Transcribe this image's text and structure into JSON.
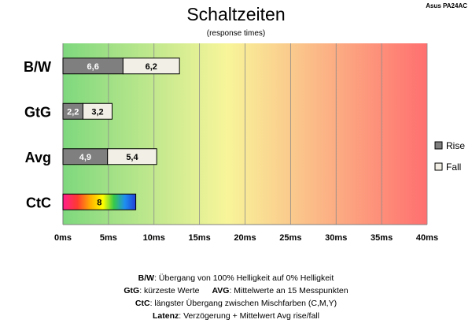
{
  "header": {
    "title": "Schaltzeiten",
    "subtitle": "(response times)",
    "model": "Asus PA24AC"
  },
  "chart_data": {
    "type": "bar",
    "orientation": "horizontal",
    "stacked": true,
    "categories": [
      "B/W",
      "GtG",
      "Avg",
      "CtC"
    ],
    "series": [
      {
        "name": "Rise",
        "color": "#7f7f7f",
        "values": [
          6.6,
          2.2,
          4.9,
          null
        ]
      },
      {
        "name": "Fall",
        "color": "#f2f0e6",
        "values": [
          6.2,
          3.2,
          5.4,
          null
        ]
      }
    ],
    "single_values": [
      null,
      null,
      null,
      8
    ],
    "single_value_labels": [
      null,
      null,
      null,
      "8"
    ],
    "rise_labels": [
      "6,6",
      "2,2",
      "4,9",
      null
    ],
    "fall_labels": [
      "6,2",
      "3,2",
      "5,4",
      null
    ],
    "xlim": [
      0,
      40
    ],
    "x_ticks": [
      0,
      5,
      10,
      15,
      20,
      25,
      30,
      35,
      40
    ],
    "x_tick_labels": [
      "0ms",
      "5ms",
      "10ms",
      "15ms",
      "20ms",
      "25ms",
      "30ms",
      "35ms",
      "40ms"
    ],
    "background_gradient": [
      "#7ed87e",
      "#f8f59a",
      "#ff6f6f"
    ],
    "grid": true,
    "legend_position": "right"
  },
  "footnotes": {
    "line1_label": "B/W",
    "line1_text": ":  Übergang von 100% Helligkeit auf 0% Helligkeit",
    "line2_label": "GtG",
    "line2_text": ": kürzeste  Werte",
    "line2b_label": "AVG",
    "line2b_text": ": Mittelwerte  an 15 Messpunkten",
    "line3_label": "CtC",
    "line3_text": ": längster Übergang  zwischen Mischfarben  (C,M,Y)",
    "line4_label": "Latenz",
    "line4_text": ": Verzögerung  + Mittelwert Avg rise/fall"
  }
}
